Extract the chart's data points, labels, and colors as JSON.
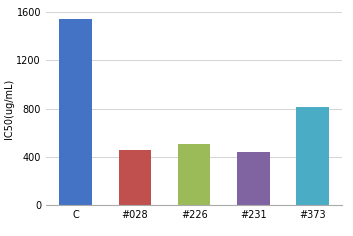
{
  "categories": [
    "C",
    "#028",
    "#226",
    "#231",
    "#373"
  ],
  "values": [
    1540,
    460,
    510,
    440,
    810
  ],
  "bar_colors": [
    "#4472C4",
    "#C0504D",
    "#9BBB59",
    "#8064A2",
    "#4BACC6"
  ],
  "ylabel": "IC50(ug/mL)",
  "ylim": [
    0,
    1600
  ],
  "yticks": [
    0,
    400,
    800,
    1200,
    1600
  ],
  "background_color": "#FFFFFF",
  "grid_color": "#CCCCCC",
  "bar_width": 0.55,
  "tick_fontsize": 7,
  "ylabel_fontsize": 7
}
